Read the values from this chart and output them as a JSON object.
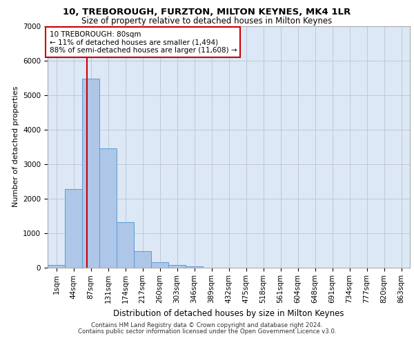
{
  "title_line1": "10, TREBOROUGH, FURZTON, MILTON KEYNES, MK4 1LR",
  "title_line2": "Size of property relative to detached houses in Milton Keynes",
  "xlabel": "Distribution of detached houses by size in Milton Keynes",
  "ylabel": "Number of detached properties",
  "footer_line1": "Contains HM Land Registry data © Crown copyright and database right 2024.",
  "footer_line2": "Contains public sector information licensed under the Open Government Licence v3.0.",
  "bar_labels": [
    "1sqm",
    "44sqm",
    "87sqm",
    "131sqm",
    "174sqm",
    "217sqm",
    "260sqm",
    "303sqm",
    "346sqm",
    "389sqm",
    "432sqm",
    "475sqm",
    "518sqm",
    "561sqm",
    "604sqm",
    "648sqm",
    "691sqm",
    "734sqm",
    "777sqm",
    "820sqm",
    "863sqm"
  ],
  "bar_values": [
    80,
    2270,
    5480,
    3450,
    1310,
    470,
    155,
    80,
    40,
    0,
    0,
    0,
    0,
    0,
    0,
    0,
    0,
    0,
    0,
    0,
    0
  ],
  "bar_color": "#aec6e8",
  "bar_edgecolor": "#5b9bd5",
  "background_color": "#dce8f5",
  "ylim": [
    0,
    7000
  ],
  "yticks": [
    0,
    1000,
    2000,
    3000,
    4000,
    5000,
    6000,
    7000
  ],
  "vline_x": 1.78,
  "vline_color": "#cc0000",
  "annotation_line1": "10 TREBOROUGH: 80sqm",
  "annotation_line2": "← 11% of detached houses are smaller (1,494)",
  "annotation_line3": "88% of semi-detached houses are larger (11,608) →",
  "annotation_box_color": "#ffffff",
  "annotation_box_edgecolor": "#cc0000",
  "grid_color": "#c0c8d8",
  "title_fontsize": 9.5,
  "subtitle_fontsize": 8.5,
  "ylabel_fontsize": 8,
  "xlabel_fontsize": 8.5,
  "tick_fontsize": 7.5,
  "footer_fontsize": 6.2,
  "annot_fontsize": 7.5
}
